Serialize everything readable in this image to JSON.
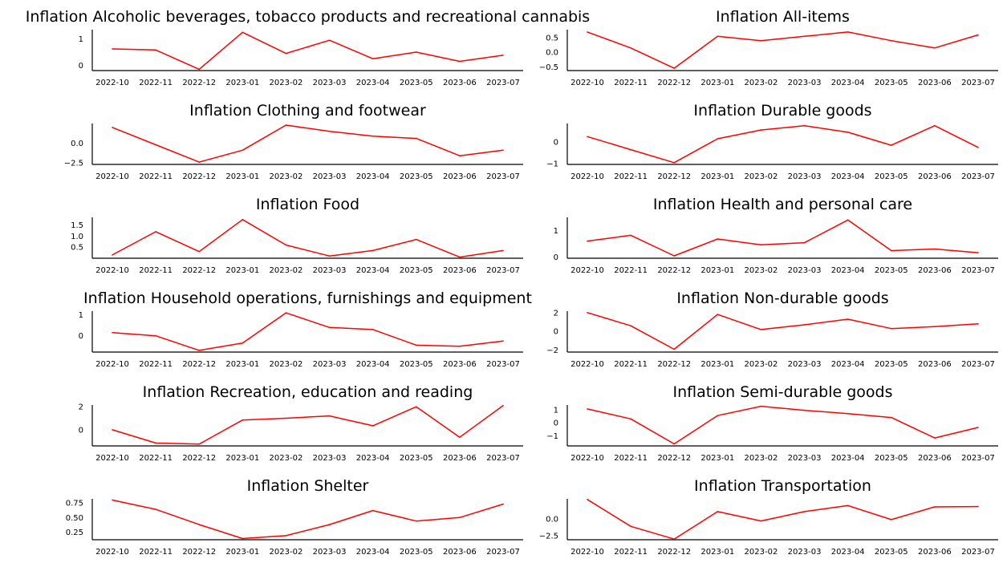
{
  "colors": {
    "line": "#ff0000",
    "axis": "#000000",
    "background": "#ffffff"
  },
  "chart_data": [
    {
      "type": "line",
      "title": "Inflation Alcoholic beverages, tobacco products and recreational cannabis",
      "x": [
        "2022-10",
        "2022-11",
        "2022-12",
        "2023-01",
        "2023-02",
        "2023-03",
        "2023-04",
        "2023-05",
        "2023-06",
        "2023-07"
      ],
      "y": [
        0.62,
        0.58,
        -0.15,
        1.25,
        0.45,
        0.95,
        0.25,
        0.5,
        0.15,
        0.38
      ],
      "ylim": [
        -0.2,
        1.35
      ],
      "yticks": [
        0,
        1
      ],
      "ytick_labels": [
        "0",
        "1"
      ]
    },
    {
      "type": "line",
      "title": "Inflation All-items",
      "x": [
        "2022-10",
        "2022-11",
        "2022-12",
        "2023-01",
        "2023-02",
        "2023-03",
        "2023-04",
        "2023-05",
        "2023-06",
        "2023-07"
      ],
      "y": [
        0.7,
        0.15,
        -0.55,
        0.55,
        0.4,
        0.55,
        0.7,
        0.4,
        0.15,
        0.6
      ],
      "ylim": [
        -0.63,
        0.78
      ],
      "yticks": [
        -0.5,
        0.0,
        0.5
      ],
      "ytick_labels": [
        "−0.5",
        "0.0",
        "0.5"
      ]
    },
    {
      "type": "line",
      "title": "Inflation Clothing and footwear",
      "x": [
        "2022-10",
        "2022-11",
        "2022-12",
        "2023-01",
        "2023-02",
        "2023-03",
        "2023-04",
        "2023-05",
        "2023-06",
        "2023-07"
      ],
      "y": [
        2.0,
        -0.2,
        -2.4,
        -0.9,
        2.3,
        1.5,
        0.9,
        0.6,
        -1.6,
        -0.9
      ],
      "ylim": [
        -2.7,
        2.5
      ],
      "yticks": [
        -2.5,
        0.0
      ],
      "ytick_labels": [
        "−2.5",
        "0.0"
      ]
    },
    {
      "type": "line",
      "title": "Inflation Durable goods",
      "x": [
        "2022-10",
        "2022-11",
        "2022-12",
        "2023-01",
        "2023-02",
        "2023-03",
        "2023-04",
        "2023-05",
        "2023-06",
        "2023-07"
      ],
      "y": [
        0.25,
        -0.35,
        -0.95,
        0.15,
        0.55,
        0.75,
        0.45,
        -0.15,
        0.75,
        -0.25
      ],
      "ylim": [
        -1.03,
        0.85
      ],
      "yticks": [
        -1,
        0
      ],
      "ytick_labels": [
        "−1",
        "0"
      ]
    },
    {
      "type": "line",
      "title": "Inflation Food",
      "x": [
        "2022-10",
        "2022-11",
        "2022-12",
        "2023-01",
        "2023-02",
        "2023-03",
        "2023-04",
        "2023-05",
        "2023-06",
        "2023-07"
      ],
      "y": [
        0.15,
        1.2,
        0.3,
        1.75,
        0.6,
        0.1,
        0.35,
        0.85,
        0.05,
        0.35
      ],
      "ylim": [
        0.0,
        1.85
      ],
      "yticks": [
        0.5,
        1.0,
        1.5
      ],
      "ytick_labels": [
        "0.5",
        "1.0",
        "1.5"
      ]
    },
    {
      "type": "line",
      "title": "Inflation Health and personal care",
      "x": [
        "2022-10",
        "2022-11",
        "2022-12",
        "2023-01",
        "2023-02",
        "2023-03",
        "2023-04",
        "2023-05",
        "2023-06",
        "2023-07"
      ],
      "y": [
        0.6,
        0.82,
        0.04,
        0.68,
        0.46,
        0.54,
        1.4,
        0.24,
        0.3,
        0.16
      ],
      "ylim": [
        -0.05,
        1.5
      ],
      "yticks": [
        0,
        1
      ],
      "ytick_labels": [
        "0",
        "1"
      ]
    },
    {
      "type": "line",
      "title": "Inflation Household operations, furnishings and equipment",
      "x": [
        "2022-10",
        "2022-11",
        "2022-12",
        "2023-01",
        "2023-02",
        "2023-03",
        "2023-04",
        "2023-05",
        "2023-06",
        "2023-07"
      ],
      "y": [
        0.15,
        0.0,
        -0.7,
        -0.35,
        1.1,
        0.4,
        0.3,
        -0.45,
        -0.5,
        -0.25
      ],
      "ylim": [
        -0.78,
        1.18
      ],
      "yticks": [
        0,
        1
      ],
      "ytick_labels": [
        "0",
        "1"
      ]
    },
    {
      "type": "line",
      "title": "Inflation Non-durable goods",
      "x": [
        "2022-10",
        "2022-11",
        "2022-12",
        "2023-01",
        "2023-02",
        "2023-03",
        "2023-04",
        "2023-05",
        "2023-06",
        "2023-07"
      ],
      "y": [
        2.0,
        0.6,
        -1.9,
        1.8,
        0.2,
        0.7,
        1.3,
        0.3,
        0.5,
        0.8
      ],
      "ylim": [
        -2.2,
        2.15
      ],
      "yticks": [
        -2,
        0,
        2
      ],
      "ytick_labels": [
        "−2",
        "0",
        "2"
      ]
    },
    {
      "type": "line",
      "title": "Inflation Recreation, education and reading",
      "x": [
        "2022-10",
        "2022-11",
        "2022-12",
        "2023-01",
        "2023-02",
        "2023-03",
        "2023-04",
        "2023-05",
        "2023-06",
        "2023-07"
      ],
      "y": [
        0.0,
        -1.15,
        -1.25,
        0.85,
        1.0,
        1.2,
        0.35,
        2.0,
        -0.65,
        2.1
      ],
      "ylim": [
        -1.4,
        2.15
      ],
      "yticks": [
        0,
        2
      ],
      "ytick_labels": [
        "0",
        "2"
      ]
    },
    {
      "type": "line",
      "title": "Inflation Semi-durable goods",
      "x": [
        "2022-10",
        "2022-11",
        "2022-12",
        "2023-01",
        "2023-02",
        "2023-03",
        "2023-04",
        "2023-05",
        "2023-06",
        "2023-07"
      ],
      "y": [
        1.05,
        0.3,
        -1.6,
        0.55,
        1.25,
        0.95,
        0.7,
        0.4,
        -1.15,
        -0.35
      ],
      "ylim": [
        -1.75,
        1.35
      ],
      "yticks": [
        -1,
        0,
        1
      ],
      "ytick_labels": [
        "−1",
        "0",
        "1"
      ]
    },
    {
      "type": "line",
      "title": "Inflation Shelter",
      "x": [
        "2022-10",
        "2022-11",
        "2022-12",
        "2023-01",
        "2023-02",
        "2023-03",
        "2023-04",
        "2023-05",
        "2023-06",
        "2023-07"
      ],
      "y": [
        0.8,
        0.64,
        0.38,
        0.14,
        0.19,
        0.38,
        0.62,
        0.44,
        0.5,
        0.73
      ],
      "ylim": [
        0.12,
        0.82
      ],
      "yticks": [
        0.25,
        0.5,
        0.75
      ],
      "ytick_labels": [
        "0.25",
        "0.50",
        "0.75"
      ]
    },
    {
      "type": "line",
      "title": "Inflation Transportation",
      "x": [
        "2022-10",
        "2022-11",
        "2022-12",
        "2023-01",
        "2023-02",
        "2023-03",
        "2023-04",
        "2023-05",
        "2023-06",
        "2023-07"
      ],
      "y": [
        2.9,
        -1.1,
        -3.0,
        1.1,
        -0.3,
        1.1,
        2.0,
        -0.1,
        1.8,
        1.85
      ],
      "ylim": [
        -3.1,
        3.0
      ],
      "yticks": [
        -2.5,
        0.0
      ],
      "ytick_labels": [
        "−2.5",
        "0.0"
      ]
    }
  ]
}
